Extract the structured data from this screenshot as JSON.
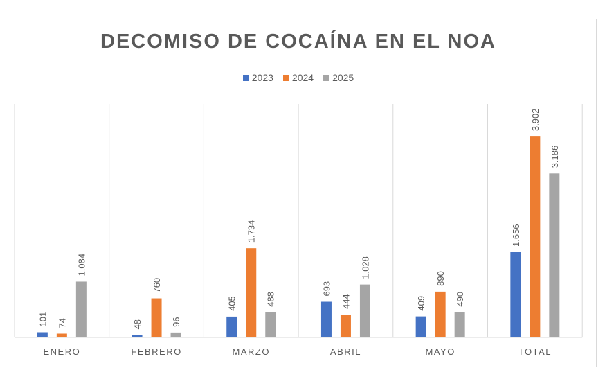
{
  "chart_data": {
    "type": "bar",
    "title": "DECOMISO DE COCAÍNA EN EL NOA",
    "categories": [
      "ENERO",
      "FEBRERO",
      "MARZO",
      "ABRIL",
      "MAYO",
      "TOTAL"
    ],
    "series": [
      {
        "name": "2023",
        "color": "#4472c4",
        "values": [
          101,
          48,
          405,
          693,
          409,
          1656
        ],
        "labels": [
          "101",
          "48",
          "405",
          "693",
          "409",
          "1.656"
        ]
      },
      {
        "name": "2024",
        "color": "#ed7d31",
        "values": [
          74,
          760,
          1734,
          444,
          890,
          3902
        ],
        "labels": [
          "74",
          "760",
          "1.734",
          "444",
          "890",
          "3.902"
        ]
      },
      {
        "name": "2025",
        "color": "#a5a5a5",
        "values": [
          1084,
          96,
          488,
          1028,
          490,
          3186
        ],
        "labels": [
          "1.084",
          "96",
          "488",
          "1.028",
          "490",
          "3.186"
        ]
      }
    ],
    "ylim": [
      0,
      4536
    ],
    "legend": "top",
    "grid": "vertical category separators"
  }
}
